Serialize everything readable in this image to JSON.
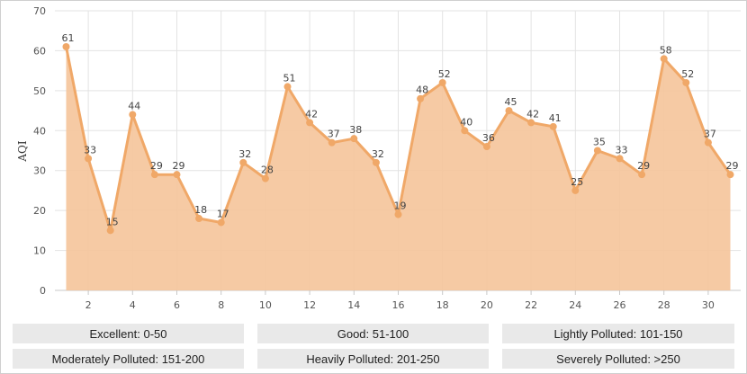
{
  "chart_data": {
    "type": "area",
    "ylabel": "AQI",
    "xlabel": "",
    "ylim": [
      0,
      70
    ],
    "xlim": [
      1,
      31
    ],
    "y_ticks": [
      0,
      10,
      20,
      30,
      40,
      50,
      60,
      70
    ],
    "x_ticks": [
      2,
      4,
      6,
      8,
      10,
      12,
      14,
      16,
      18,
      20,
      22,
      24,
      26,
      28,
      30
    ],
    "grid": true,
    "series": [
      {
        "x": [
          1,
          2,
          3,
          4,
          5,
          6,
          7,
          8,
          9,
          10,
          11,
          12,
          13,
          14,
          15,
          16,
          17,
          18,
          19,
          20,
          21,
          22,
          23,
          24,
          25,
          26,
          27,
          28,
          29,
          30,
          31
        ],
        "values": [
          61,
          33,
          15,
          44,
          29,
          29,
          18,
          17,
          32,
          28,
          51,
          42,
          37,
          38,
          32,
          19,
          48,
          52,
          40,
          36,
          45,
          42,
          41,
          25,
          35,
          33,
          29,
          58,
          52,
          37,
          29
        ]
      }
    ],
    "colors": {
      "fill": "#f5c49a",
      "line": "#f0a868",
      "point": "#f0a868",
      "grid": "#e3e3e3"
    }
  },
  "legend": {
    "categories": [
      "Excellent: 0-50",
      "Good: 51-100",
      "Lightly Polluted: 101-150",
      "Moderately Polluted: 151-200",
      "Heavily Polluted: 201-250",
      "Severely Polluted: >250"
    ]
  }
}
